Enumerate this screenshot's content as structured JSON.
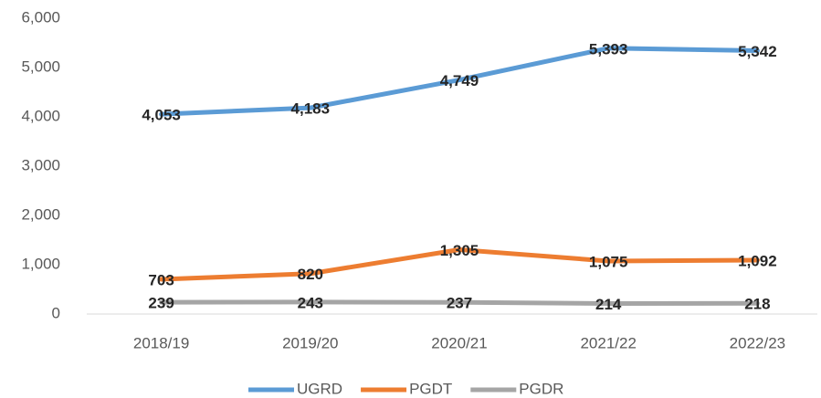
{
  "chart_data": {
    "type": "line",
    "categories": [
      "2018/19",
      "2019/20",
      "2020/21",
      "2021/22",
      "2022/23"
    ],
    "series": [
      {
        "name": "UGRD",
        "color": "#5b9bd5",
        "values": [
          4053,
          4183,
          4749,
          5393,
          5342
        ],
        "value_labels": [
          "4,053",
          "4,183",
          "4,749",
          "5,393",
          "5,342"
        ]
      },
      {
        "name": "PGDT",
        "color": "#ed7d31",
        "values": [
          703,
          820,
          1305,
          1075,
          1092
        ],
        "value_labels": [
          "703",
          "820",
          "1,305",
          "1,075",
          "1,092"
        ]
      },
      {
        "name": "PGDR",
        "color": "#a5a5a5",
        "values": [
          239,
          243,
          237,
          214,
          218
        ],
        "value_labels": [
          "239",
          "243",
          "237",
          "214",
          "218"
        ]
      }
    ],
    "ylim": [
      0,
      6000
    ],
    "yticks": [
      0,
      {
        "value": 1000,
        "label": "1,000"
      },
      {
        "value": 2000,
        "label": "2,000"
      },
      {
        "value": 3000,
        "label": "3,000"
      },
      {
        "value": 4000,
        "label": "4,000"
      },
      {
        "value": 5000,
        "label": "5,000"
      },
      {
        "value": 6000,
        "label": "6,000"
      }
    ],
    "legend": "bottom"
  }
}
